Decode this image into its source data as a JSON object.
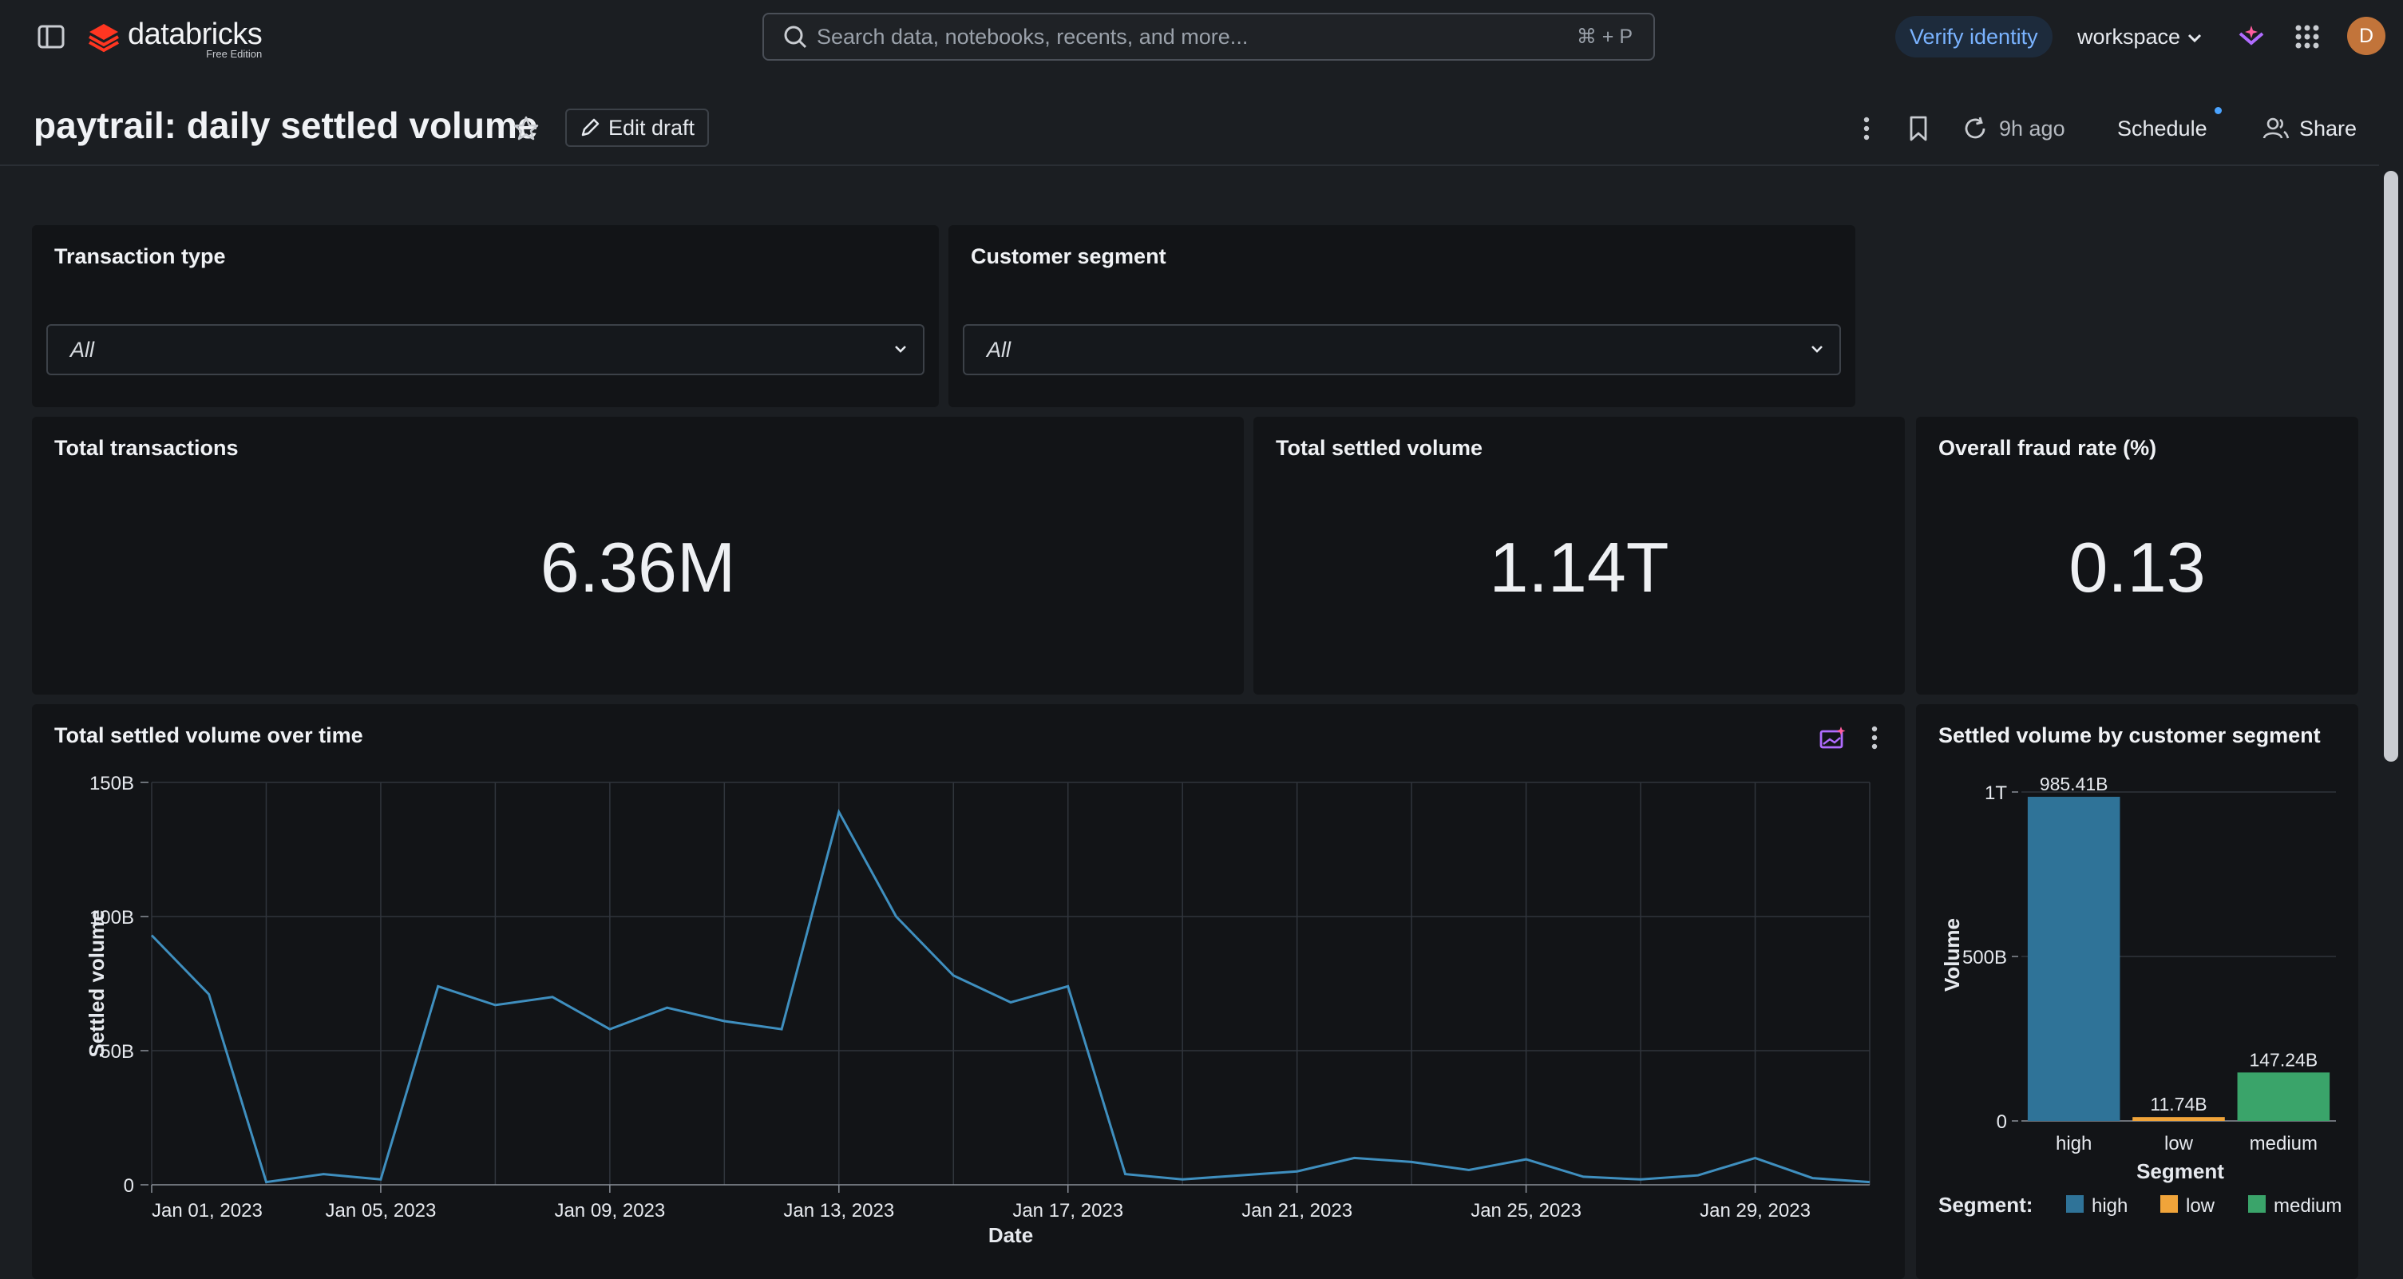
{
  "app": {
    "logo_text": "databricks",
    "edition": "Free Edition"
  },
  "search": {
    "placeholder": "Search data, notebooks, recents, and more...",
    "shortcut": "⌘ + P"
  },
  "header": {
    "verify_label": "Verify identity",
    "workspace_label": "workspace",
    "avatar_initial": "D"
  },
  "dashboard": {
    "title": "paytrail: daily settled volume",
    "edit_label": "Edit draft",
    "refresh_label": "9h ago",
    "schedule_label": "Schedule",
    "share_label": "Share"
  },
  "filters": [
    {
      "title": "Transaction type",
      "value": "All"
    },
    {
      "title": "Customer segment",
      "value": "All"
    }
  ],
  "kpis": [
    {
      "title": "Total transactions",
      "value": "6.36M"
    },
    {
      "title": "Total settled volume",
      "value": "1.14T"
    },
    {
      "title": "Overall fraud rate (%)",
      "value": "0.13"
    }
  ],
  "colors": {
    "line": "#3f8fbf",
    "high": "#2f7398",
    "low": "#f0a43a",
    "medium": "#3aa46a",
    "accent": "#7ab3ff"
  },
  "icons": [
    "sidebar-toggle-icon",
    "databricks-logo-icon",
    "search-icon",
    "chevron-down-icon",
    "assistant-icon",
    "apps-grid-icon",
    "star-icon",
    "pencil-icon",
    "kebab-icon",
    "bookmark-icon",
    "refresh-icon",
    "share-person-icon",
    "ai-insight-icon"
  ],
  "chart_data": [
    {
      "type": "line",
      "title": "Total settled volume over time",
      "xlabel": "Date",
      "ylabel": "Settled volume",
      "x_tick_labels": [
        "Jan 01, 2023",
        "Jan 05, 2023",
        "Jan 09, 2023",
        "Jan 13, 2023",
        "Jan 17, 2023",
        "Jan 21, 2023",
        "Jan 25, 2023",
        "Jan 29, 2023"
      ],
      "y_tick_labels": [
        "0",
        "50B",
        "100B",
        "150B"
      ],
      "ylim": [
        0,
        150
      ],
      "y_unit": "B",
      "grid": true,
      "x": [
        "2023-01-01",
        "2023-01-02",
        "2023-01-03",
        "2023-01-04",
        "2023-01-05",
        "2023-01-06",
        "2023-01-07",
        "2023-01-08",
        "2023-01-09",
        "2023-01-10",
        "2023-01-11",
        "2023-01-12",
        "2023-01-13",
        "2023-01-14",
        "2023-01-15",
        "2023-01-16",
        "2023-01-17",
        "2023-01-18",
        "2023-01-19",
        "2023-01-20",
        "2023-01-21",
        "2023-01-22",
        "2023-01-23",
        "2023-01-24",
        "2023-01-25",
        "2023-01-26",
        "2023-01-27",
        "2023-01-28",
        "2023-01-29",
        "2023-01-30",
        "2023-01-31"
      ],
      "series": [
        {
          "values": [
            93,
            71,
            1,
            4,
            2,
            74,
            67,
            70,
            58,
            66,
            61,
            58,
            139,
            100,
            78,
            68,
            74,
            4,
            2,
            3.5,
            5,
            10,
            8.5,
            5.5,
            9.5,
            3,
            2,
            3.5,
            10,
            2.5,
            1
          ]
        }
      ]
    },
    {
      "type": "bar",
      "title": "Settled volume by customer segment",
      "xlabel": "Segment",
      "ylabel": "Volume",
      "categories": [
        "high",
        "low",
        "medium"
      ],
      "values": [
        985.41,
        11.74,
        147.24
      ],
      "value_labels": [
        "985.41B",
        "11.74B",
        "147.24B"
      ],
      "y_unit": "B",
      "y_tick_labels": [
        "0",
        "500B",
        "1T"
      ],
      "ylim": [
        0,
        1000
      ],
      "legend_title": "Segment:",
      "legend": [
        "high",
        "low",
        "medium"
      ],
      "legend_position": "bottom"
    }
  ]
}
